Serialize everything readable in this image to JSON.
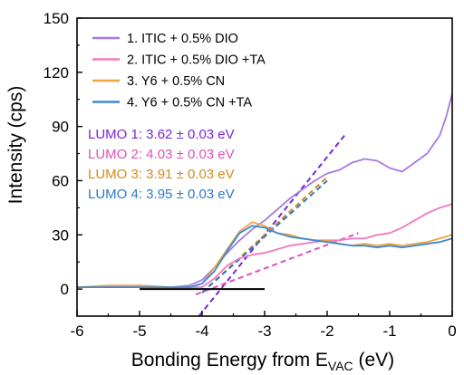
{
  "chart_data": {
    "type": "line",
    "xlabel": "Bonding Energy from E",
    "xlabel_sub": "VAC",
    "xlabel_unit": " (eV)",
    "ylabel": "Intensity (cps)",
    "xlim": [
      -6,
      0
    ],
    "ylim": [
      -15,
      150
    ],
    "x_ticks": [
      -6,
      -5,
      -4,
      -3,
      -2,
      -1,
      0
    ],
    "y_ticks": [
      0,
      30,
      60,
      90,
      120,
      150
    ],
    "legend_position": "top-center",
    "series": [
      {
        "name": "1. ITIC + 0.5% DIO",
        "color": "#a678e8",
        "points": [
          [
            -6,
            1
          ],
          [
            -5.5,
            1
          ],
          [
            -5,
            2
          ],
          [
            -4.5,
            1
          ],
          [
            -4.2,
            2
          ],
          [
            -4,
            5
          ],
          [
            -3.8,
            12
          ],
          [
            -3.6,
            20
          ],
          [
            -3.4,
            27
          ],
          [
            -3.2,
            33
          ],
          [
            -3,
            38
          ],
          [
            -2.8,
            44
          ],
          [
            -2.6,
            50
          ],
          [
            -2.4,
            55
          ],
          [
            -2.2,
            60
          ],
          [
            -2,
            64
          ],
          [
            -1.8,
            66
          ],
          [
            -1.6,
            70
          ],
          [
            -1.4,
            72
          ],
          [
            -1.2,
            71
          ],
          [
            -1,
            67
          ],
          [
            -0.8,
            65
          ],
          [
            -0.6,
            70
          ],
          [
            -0.4,
            75
          ],
          [
            -0.2,
            85
          ],
          [
            -0.1,
            95
          ],
          [
            0,
            108
          ]
        ]
      },
      {
        "name": "2. ITIC + 0.5% DIO +TA",
        "color": "#f07ac0",
        "points": [
          [
            -6,
            1
          ],
          [
            -5.5,
            1
          ],
          [
            -5,
            1
          ],
          [
            -4.5,
            1
          ],
          [
            -4,
            1
          ],
          [
            -3.8,
            6
          ],
          [
            -3.6,
            13
          ],
          [
            -3.4,
            17
          ],
          [
            -3.2,
            19
          ],
          [
            -3,
            20
          ],
          [
            -2.8,
            22
          ],
          [
            -2.6,
            24
          ],
          [
            -2.4,
            25
          ],
          [
            -2.2,
            26
          ],
          [
            -2,
            27
          ],
          [
            -1.8,
            27
          ],
          [
            -1.6,
            28
          ],
          [
            -1.4,
            28
          ],
          [
            -1.2,
            30
          ],
          [
            -1,
            31
          ],
          [
            -0.8,
            34
          ],
          [
            -0.6,
            38
          ],
          [
            -0.4,
            42
          ],
          [
            -0.2,
            45
          ],
          [
            0,
            47
          ]
        ]
      },
      {
        "name": "3. Y6 + 0.5% CN",
        "color": "#f2a43c",
        "points": [
          [
            -6,
            1
          ],
          [
            -5.5,
            2
          ],
          [
            -5,
            2
          ],
          [
            -4.5,
            1
          ],
          [
            -4.2,
            1
          ],
          [
            -4,
            3
          ],
          [
            -3.8,
            12
          ],
          [
            -3.6,
            22
          ],
          [
            -3.4,
            32
          ],
          [
            -3.2,
            37
          ],
          [
            -3,
            35
          ],
          [
            -2.8,
            31
          ],
          [
            -2.6,
            30
          ],
          [
            -2.4,
            28
          ],
          [
            -2.2,
            27
          ],
          [
            -2,
            27
          ],
          [
            -1.8,
            25
          ],
          [
            -1.6,
            24
          ],
          [
            -1.4,
            25
          ],
          [
            -1.2,
            24
          ],
          [
            -1,
            25
          ],
          [
            -0.8,
            24
          ],
          [
            -0.6,
            25
          ],
          [
            -0.4,
            26
          ],
          [
            -0.2,
            28
          ],
          [
            0,
            30
          ]
        ]
      },
      {
        "name": "4. Y6 + 0.5% CN +TA",
        "color": "#3a8ad6",
        "points": [
          [
            -6,
            1
          ],
          [
            -5.5,
            1
          ],
          [
            -5,
            1
          ],
          [
            -4.5,
            1
          ],
          [
            -4.2,
            1
          ],
          [
            -4,
            3
          ],
          [
            -3.8,
            10
          ],
          [
            -3.6,
            21
          ],
          [
            -3.4,
            31
          ],
          [
            -3.2,
            35
          ],
          [
            -3,
            34
          ],
          [
            -2.8,
            31
          ],
          [
            -2.6,
            29
          ],
          [
            -2.4,
            28
          ],
          [
            -2.2,
            27
          ],
          [
            -2,
            26
          ],
          [
            -1.8,
            25
          ],
          [
            -1.6,
            24
          ],
          [
            -1.4,
            24
          ],
          [
            -1.2,
            23
          ],
          [
            -1,
            24
          ],
          [
            -0.8,
            23
          ],
          [
            -0.6,
            24
          ],
          [
            -0.4,
            25
          ],
          [
            -0.2,
            26
          ],
          [
            0,
            28
          ]
        ]
      }
    ],
    "fit_lines": [
      {
        "color": "#7a26d8",
        "from": [
          -4.05,
          -15
        ],
        "to": [
          -1.7,
          86
        ]
      },
      {
        "color": "#e050b8",
        "from": [
          -4.1,
          -3
        ],
        "to": [
          -1.5,
          31
        ]
      },
      {
        "color": "#d48a1c",
        "from": [
          -4.0,
          -2
        ],
        "to": [
          -2.0,
          62
        ]
      },
      {
        "color": "#2c7ac8",
        "from": [
          -4.0,
          -2
        ],
        "to": [
          -2.0,
          60
        ]
      }
    ],
    "baseline": {
      "color": "#000000",
      "from": [
        -5,
        0
      ],
      "to": [
        -3,
        0
      ]
    },
    "annotations": [
      {
        "text": "LUMO 1: 3.62 ± 0.03 eV",
        "color": "#7a26d8"
      },
      {
        "text": "LUMO 2: 4.03 ± 0.03 eV",
        "color": "#e050b8"
      },
      {
        "text": "LUMO 3: 3.91 ± 0.03 eV",
        "color": "#d48a1c"
      },
      {
        "text": "LUMO 4: 3.95 ± 0.03 eV",
        "color": "#2c7ac8"
      }
    ]
  }
}
